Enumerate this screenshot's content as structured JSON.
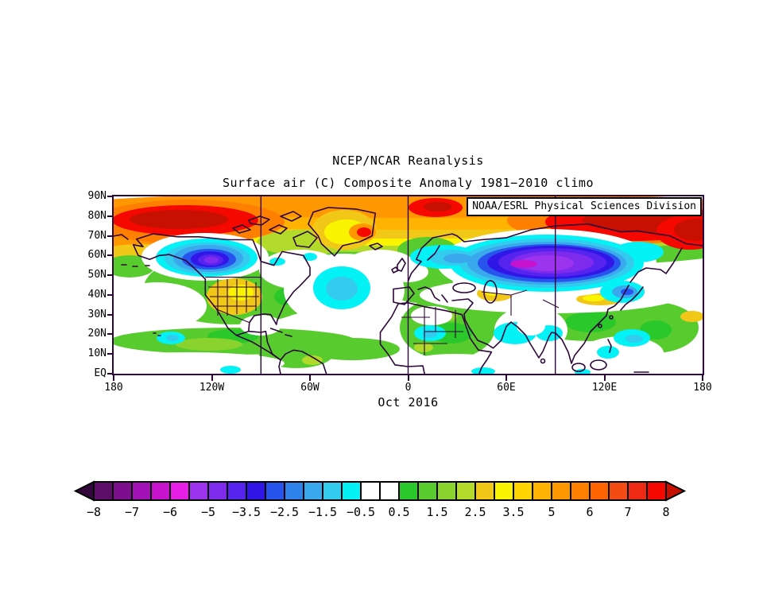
{
  "figure": {
    "title": "NCEP/NCAR Reanalysis",
    "subtitle": "Surface air (C) Composite Anomaly 1981−2010 climo",
    "credit": "NOAA/ESRL Physical Sciences Division",
    "period_label": "Oct 2016"
  },
  "map_axes": {
    "lat_labels": [
      "90N",
      "80N",
      "70N",
      "60N",
      "50N",
      "40N",
      "30N",
      "20N",
      "10N",
      "EQ"
    ],
    "lon_labels": [
      "180",
      "120W",
      "60W",
      "0",
      "60E",
      "120E",
      "180"
    ]
  },
  "colorbar": {
    "labels": [
      "−8",
      "−7",
      "−6",
      "−5",
      "−3.5",
      "−2.5",
      "−1.5",
      "−0.5",
      "0.5",
      "1.5",
      "2.5",
      "3.5",
      "5",
      "6",
      "7",
      "8"
    ],
    "colors": [
      "#5C0E68",
      "#7D0F8E",
      "#A312B6",
      "#C713CE",
      "#E61EE6",
      "#9C33EE",
      "#7F2BEE",
      "#5723EE",
      "#3017E8",
      "#2854EE",
      "#2E81E8",
      "#3AA8EC",
      "#33CBEE",
      "#04F2F6",
      "#FFFFFF",
      "#FFFFFF",
      "#2AC82A",
      "#58CC2E",
      "#8AD22E",
      "#B2DA2A",
      "#F2C818",
      "#FBF400",
      "#FFD400",
      "#FFB200",
      "#FF9800",
      "#FF8000",
      "#FF6400",
      "#F44A14",
      "#EE2A14",
      "#F40800"
    ],
    "arrow_left_color": "#34063E",
    "arrow_right_color": "#C81000"
  },
  "chart_data": {
    "type": "heatmap",
    "title": "NCEP/NCAR Reanalysis",
    "subtitle": "Surface air (C) Composite Anomaly 1981-2010 climo",
    "period": "Oct 2016",
    "units": "degrees C anomaly",
    "projection": "equirectangular",
    "lat_range": [
      0,
      90
    ],
    "lon_range": [
      -180,
      180
    ],
    "lat_ticks": [
      "90N",
      "80N",
      "70N",
      "60N",
      "50N",
      "40N",
      "30N",
      "20N",
      "10N",
      "EQ"
    ],
    "lon_ticks": [
      "180",
      "120W",
      "60W",
      "0",
      "60E",
      "120E",
      "180"
    ],
    "meridian_lines_deg": [
      -90,
      0,
      90
    ],
    "colorbar_labeled_levels": [
      -8,
      -7,
      -6,
      -5,
      -3.5,
      -2.5,
      -1.5,
      -0.5,
      0.5,
      1.5,
      2.5,
      3.5,
      5,
      6,
      7,
      8
    ],
    "notable_anomalies": [
      {
        "region": "Arctic Beaufort/Chukchi seas (75-85N, 170W-120W)",
        "anomaly_c": "+6 to +8"
      },
      {
        "region": "Northeast Siberia Arctic coast (70-80N, 110E-180)",
        "anomaly_c": "+6 to +8"
      },
      {
        "region": "Arctic band (75-90N) overall",
        "anomaly_c": "+3 to +6"
      },
      {
        "region": "Yukon / western Canada (50-67N, 150W-100W)",
        "anomaly_c": "-3 to -6 (purple core)"
      },
      {
        "region": "Central Siberia (45-68N, 35E-140E)",
        "anomaly_c": "-4 to -7 (magenta core near 60E-90E)"
      },
      {
        "region": "Western and central United States",
        "anomaly_c": "+2 to +3.5"
      },
      {
        "region": "Greenland interior with east-coast hot spot",
        "anomaly_c": "+2 to +6"
      },
      {
        "region": "Mid-Atlantic near 44W 43N",
        "anomaly_c": "-1 to -2"
      },
      {
        "region": "Tropics and mid-latitude oceans",
        "anomaly_c": "-0.5 to +1.5 (greens/white)"
      }
    ]
  }
}
